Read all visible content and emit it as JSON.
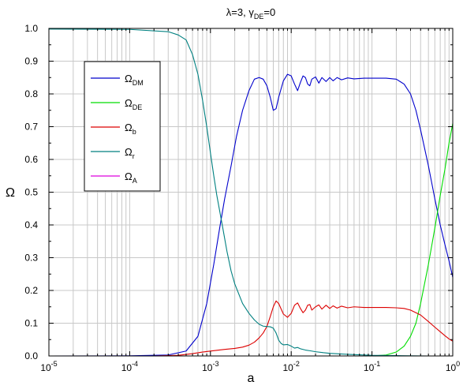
{
  "chart_data": {
    "type": "line",
    "title": {
      "text": "λ=3, γ",
      "sub": "DE",
      "tail": "=0"
    },
    "xlabel": "a",
    "ylabel": "Ω",
    "xscale": "log",
    "xlim": [
      1e-05,
      1
    ],
    "ylim": [
      0,
      1
    ],
    "grid": true,
    "legend_position": "upper-left inside",
    "x_ticks": [
      {
        "base": "10",
        "exp": "-5"
      },
      {
        "base": "10",
        "exp": "-4"
      },
      {
        "base": "10",
        "exp": "-3"
      },
      {
        "base": "10",
        "exp": "-2"
      },
      {
        "base": "10",
        "exp": "-1"
      },
      {
        "base": "10",
        "exp": "0"
      }
    ],
    "y_ticks": [
      "0.0",
      "0.1",
      "0.2",
      "0.3",
      "0.4",
      "0.5",
      "0.6",
      "0.7",
      "0.8",
      "0.9",
      "1.0"
    ],
    "series": [
      {
        "name": "Ω",
        "sub": "DM",
        "color": "#0000cc",
        "points": [
          [
            1e-05,
            0
          ],
          [
            0.0001,
            0.0005
          ],
          [
            0.0003,
            0.003
          ],
          [
            0.0005,
            0.015
          ],
          [
            0.0007,
            0.06
          ],
          [
            0.0009,
            0.16
          ],
          [
            0.0011,
            0.28
          ],
          [
            0.0013,
            0.39
          ],
          [
            0.0015,
            0.48
          ],
          [
            0.0018,
            0.58
          ],
          [
            0.0021,
            0.67
          ],
          [
            0.0025,
            0.75
          ],
          [
            0.003,
            0.81
          ],
          [
            0.0035,
            0.845
          ],
          [
            0.004,
            0.85
          ],
          [
            0.0045,
            0.845
          ],
          [
            0.005,
            0.825
          ],
          [
            0.0055,
            0.79
          ],
          [
            0.006,
            0.75
          ],
          [
            0.0065,
            0.755
          ],
          [
            0.007,
            0.79
          ],
          [
            0.008,
            0.84
          ],
          [
            0.009,
            0.86
          ],
          [
            0.01,
            0.855
          ],
          [
            0.011,
            0.83
          ],
          [
            0.012,
            0.81
          ],
          [
            0.013,
            0.835
          ],
          [
            0.014,
            0.855
          ],
          [
            0.015,
            0.85
          ],
          [
            0.016,
            0.83
          ],
          [
            0.017,
            0.825
          ],
          [
            0.018,
            0.845
          ],
          [
            0.02,
            0.852
          ],
          [
            0.022,
            0.833
          ],
          [
            0.024,
            0.85
          ],
          [
            0.027,
            0.838
          ],
          [
            0.03,
            0.85
          ],
          [
            0.033,
            0.84
          ],
          [
            0.037,
            0.85
          ],
          [
            0.042,
            0.843
          ],
          [
            0.05,
            0.849
          ],
          [
            0.06,
            0.846
          ],
          [
            0.08,
            0.848
          ],
          [
            0.1,
            0.848
          ],
          [
            0.15,
            0.848
          ],
          [
            0.2,
            0.845
          ],
          [
            0.25,
            0.83
          ],
          [
            0.3,
            0.8
          ],
          [
            0.35,
            0.75
          ],
          [
            0.4,
            0.69
          ],
          [
            0.5,
            0.58
          ],
          [
            0.6,
            0.48
          ],
          [
            0.7,
            0.4
          ],
          [
            0.8,
            0.34
          ],
          [
            0.9,
            0.29
          ],
          [
            1,
            0.24
          ]
        ]
      },
      {
        "name": "Ω",
        "sub": "DE",
        "color": "#00dd00",
        "points": [
          [
            1e-05,
            0
          ],
          [
            0.1,
            0
          ],
          [
            0.15,
            0.003
          ],
          [
            0.2,
            0.012
          ],
          [
            0.25,
            0.03
          ],
          [
            0.3,
            0.06
          ],
          [
            0.35,
            0.1
          ],
          [
            0.4,
            0.16
          ],
          [
            0.5,
            0.28
          ],
          [
            0.6,
            0.39
          ],
          [
            0.7,
            0.49
          ],
          [
            0.8,
            0.57
          ],
          [
            0.9,
            0.65
          ],
          [
            1,
            0.71
          ]
        ]
      },
      {
        "name": "Ω",
        "sub": "b",
        "color": "#dd0000",
        "points": [
          [
            1e-05,
            0
          ],
          [
            0.0002,
            0
          ],
          [
            0.0004,
            0.002
          ],
          [
            0.0006,
            0.007
          ],
          [
            0.0008,
            0.012
          ],
          [
            0.001,
            0.015
          ],
          [
            0.0015,
            0.02
          ],
          [
            0.002,
            0.023
          ],
          [
            0.0025,
            0.027
          ],
          [
            0.003,
            0.033
          ],
          [
            0.0035,
            0.042
          ],
          [
            0.004,
            0.055
          ],
          [
            0.0045,
            0.07
          ],
          [
            0.005,
            0.09
          ],
          [
            0.0055,
            0.12
          ],
          [
            0.006,
            0.15
          ],
          [
            0.0065,
            0.168
          ],
          [
            0.007,
            0.16
          ],
          [
            0.008,
            0.128
          ],
          [
            0.009,
            0.118
          ],
          [
            0.01,
            0.13
          ],
          [
            0.011,
            0.155
          ],
          [
            0.012,
            0.162
          ],
          [
            0.013,
            0.145
          ],
          [
            0.014,
            0.132
          ],
          [
            0.015,
            0.14
          ],
          [
            0.016,
            0.155
          ],
          [
            0.017,
            0.157
          ],
          [
            0.018,
            0.14
          ],
          [
            0.02,
            0.15
          ],
          [
            0.022,
            0.156
          ],
          [
            0.024,
            0.143
          ],
          [
            0.027,
            0.155
          ],
          [
            0.03,
            0.145
          ],
          [
            0.033,
            0.153
          ],
          [
            0.037,
            0.146
          ],
          [
            0.042,
            0.152
          ],
          [
            0.05,
            0.147
          ],
          [
            0.06,
            0.15
          ],
          [
            0.08,
            0.148
          ],
          [
            0.1,
            0.148
          ],
          [
            0.15,
            0.148
          ],
          [
            0.2,
            0.147
          ],
          [
            0.25,
            0.145
          ],
          [
            0.3,
            0.14
          ],
          [
            0.4,
            0.125
          ],
          [
            0.5,
            0.105
          ],
          [
            0.6,
            0.088
          ],
          [
            0.7,
            0.074
          ],
          [
            0.8,
            0.062
          ],
          [
            0.9,
            0.052
          ],
          [
            1,
            0.045
          ]
        ]
      },
      {
        "name": "Ω",
        "sub": "r",
        "color": "#008080",
        "points": [
          [
            1e-05,
            0.998
          ],
          [
            0.0001,
            0.997
          ],
          [
            0.0003,
            0.99
          ],
          [
            0.0004,
            0.98
          ],
          [
            0.0005,
            0.965
          ],
          [
            0.0006,
            0.92
          ],
          [
            0.0007,
            0.86
          ],
          [
            0.0008,
            0.78
          ],
          [
            0.0009,
            0.7
          ],
          [
            0.001,
            0.62
          ],
          [
            0.0011,
            0.55
          ],
          [
            0.0012,
            0.49
          ],
          [
            0.0014,
            0.4
          ],
          [
            0.0016,
            0.32
          ],
          [
            0.0018,
            0.26
          ],
          [
            0.002,
            0.22
          ],
          [
            0.0025,
            0.16
          ],
          [
            0.003,
            0.13
          ],
          [
            0.0035,
            0.11
          ],
          [
            0.004,
            0.097
          ],
          [
            0.0045,
            0.091
          ],
          [
            0.005,
            0.09
          ],
          [
            0.0055,
            0.089
          ],
          [
            0.006,
            0.085
          ],
          [
            0.0065,
            0.07
          ],
          [
            0.007,
            0.048
          ],
          [
            0.0075,
            0.038
          ],
          [
            0.008,
            0.034
          ],
          [
            0.009,
            0.035
          ],
          [
            0.01,
            0.03
          ],
          [
            0.011,
            0.024
          ],
          [
            0.012,
            0.026
          ],
          [
            0.013,
            0.022
          ],
          [
            0.015,
            0.018
          ],
          [
            0.017,
            0.016
          ],
          [
            0.02,
            0.013
          ],
          [
            0.025,
            0.01
          ],
          [
            0.03,
            0.008
          ],
          [
            0.05,
            0.005
          ],
          [
            0.1,
            0.002
          ],
          [
            0.2,
            0.001
          ],
          [
            0.5,
            0
          ],
          [
            1,
            0
          ]
        ]
      },
      {
        "name": "Ω",
        "sub": "A",
        "color": "#dd00dd",
        "points": [
          [
            1e-05,
            0
          ],
          [
            1,
            0
          ]
        ]
      }
    ]
  }
}
